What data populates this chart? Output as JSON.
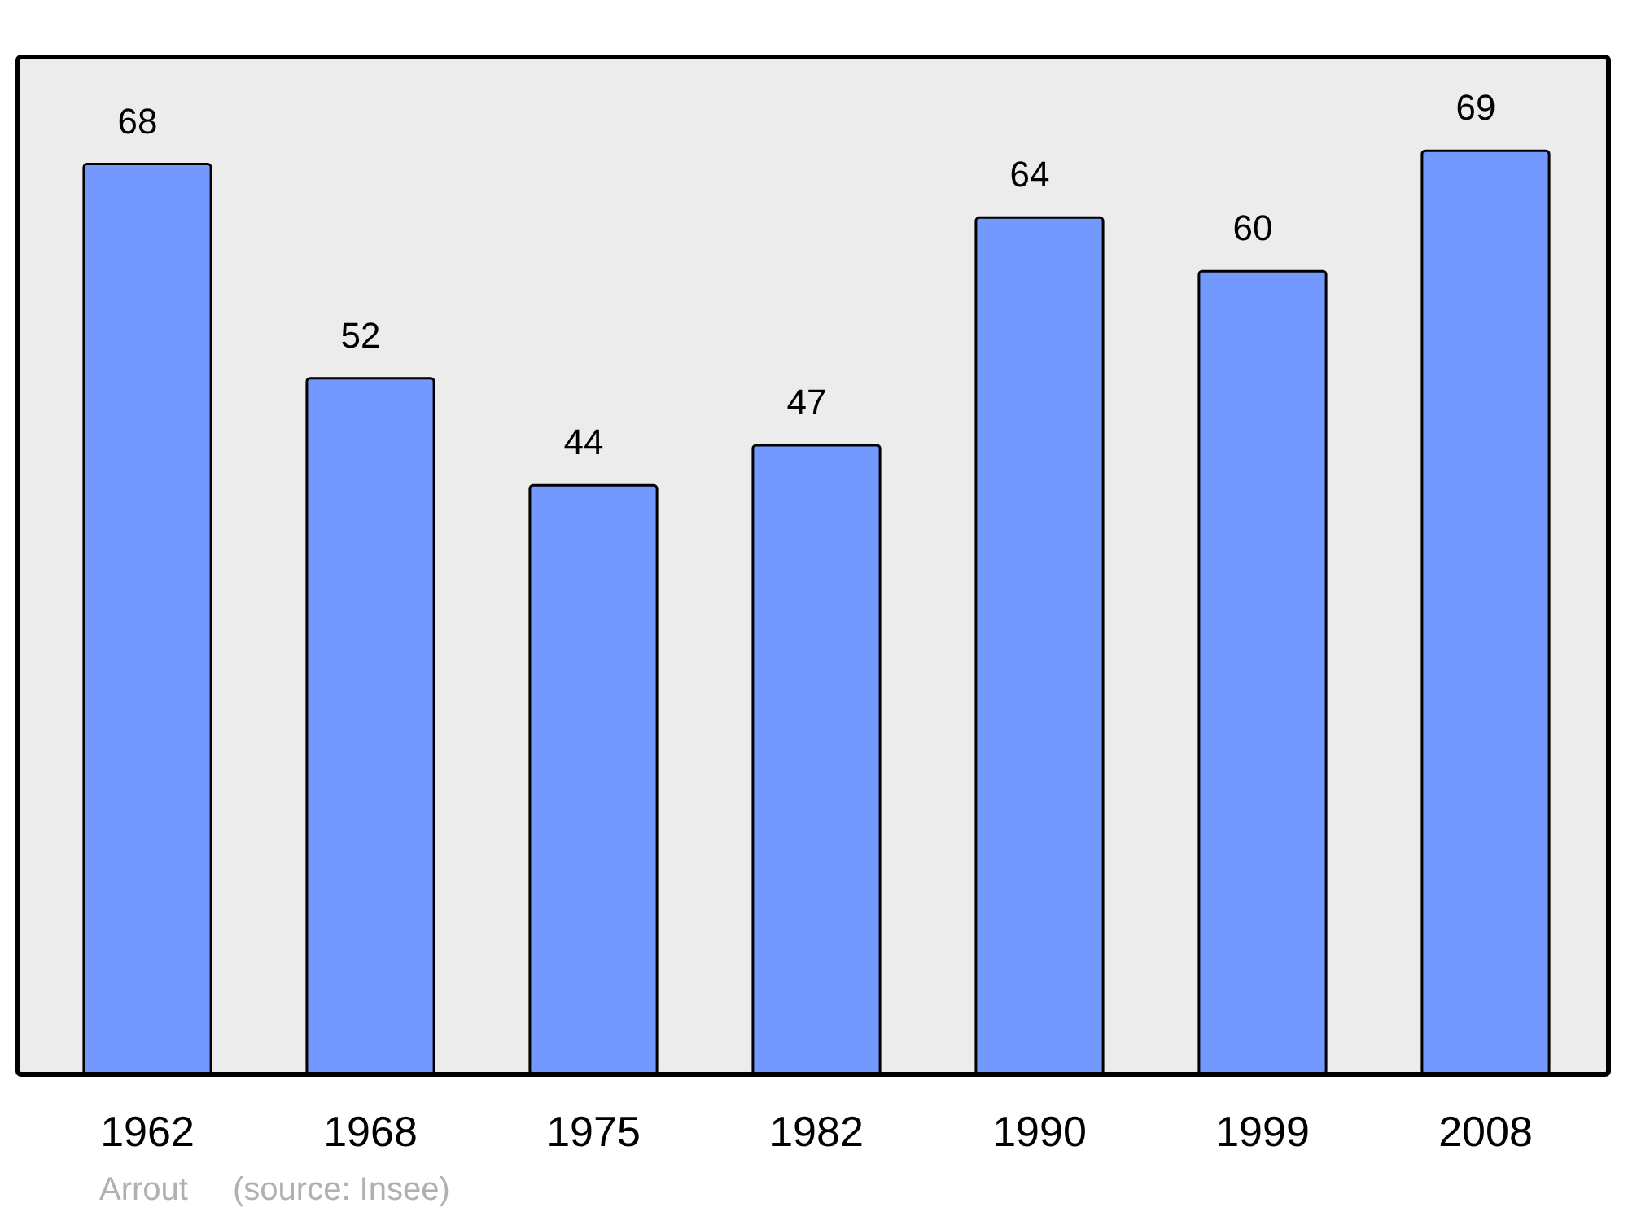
{
  "chart_data": {
    "type": "bar",
    "categories": [
      "1962",
      "1968",
      "1975",
      "1982",
      "1990",
      "1999",
      "2008"
    ],
    "values": [
      68,
      52,
      44,
      47,
      64,
      60,
      69
    ],
    "color": "#7399ff",
    "data_labels": true,
    "ylim": [
      0,
      76
    ],
    "tick_labels": "x",
    "annotations": [
      "Arrout",
      "(source: Insee)"
    ]
  }
}
